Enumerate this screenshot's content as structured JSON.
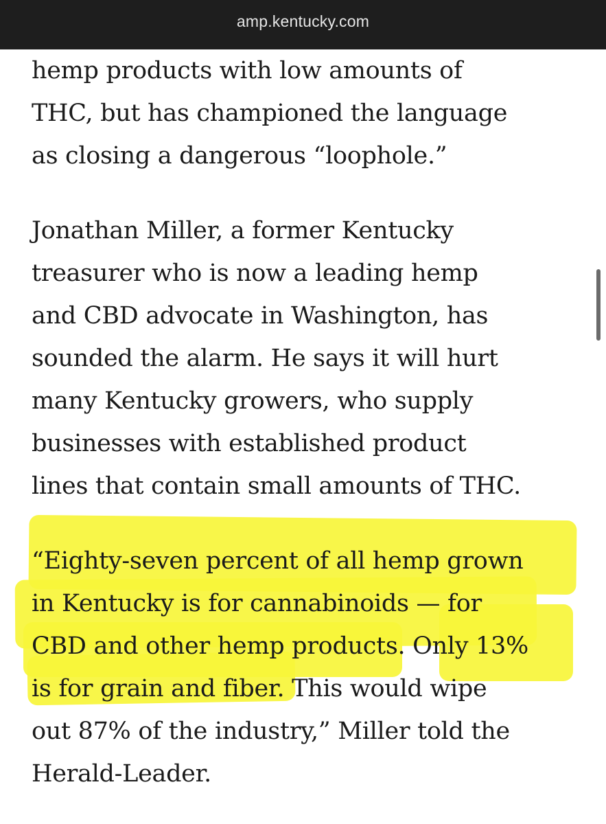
{
  "browser": {
    "url": "amp.kentucky.com"
  },
  "article": {
    "paragraphs": [
      {
        "lines": [
          "hemp products with low amounts of",
          "THC, but has championed the language",
          "as closing a dangerous “loophole.”"
        ]
      },
      {
        "lines": [
          "Jonathan Miller, a former Kentucky",
          "treasurer who is now a leading hemp",
          "and CBD advocate in Washington, has",
          "sounded the alarm. He says it will hurt",
          "many Kentucky growers, who supply",
          "businesses with established product",
          "lines that contain small amounts of THC."
        ]
      },
      {
        "lines": [
          "“Eighty-seven percent of all hemp grown",
          "in Kentucky is for cannabinoids — for",
          "CBD and other hemp products. Only 13%",
          "is for grain and fiber. This would wipe",
          "out 87% of the industry,” Miller told the",
          "Herald-Leader."
        ]
      }
    ]
  },
  "highlight": {
    "color": "#f7f53a"
  }
}
